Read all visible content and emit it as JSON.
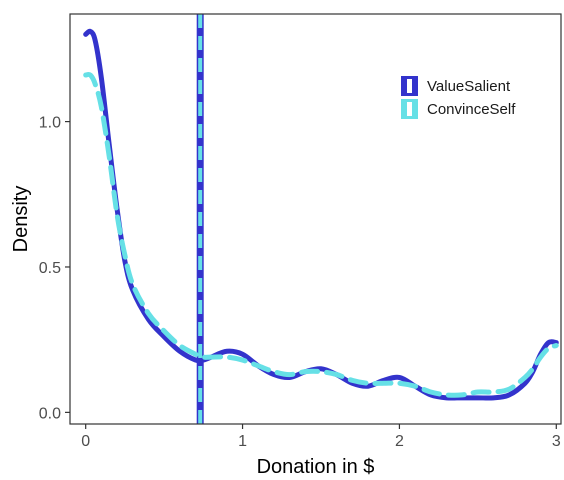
{
  "chart_data": {
    "type": "line",
    "title": "",
    "xlabel": "Donation in $",
    "ylabel": "Density",
    "xlim": [
      -0.1,
      3.03
    ],
    "ylim": [
      -0.04,
      1.37
    ],
    "x_ticks": [
      0,
      1,
      2,
      3
    ],
    "x_tick_labels": [
      "0",
      "1",
      "2",
      "3"
    ],
    "y_ticks": [
      0.0,
      0.5,
      1.0
    ],
    "y_tick_labels": [
      "0.0",
      "0.5",
      "1.0"
    ],
    "grid": false,
    "legend_position": "top-right",
    "series": [
      {
        "name": "ValueSalient",
        "color": "#3333cc",
        "line_style": "solid",
        "x": [
          0.0,
          0.03,
          0.06,
          0.1,
          0.15,
          0.2,
          0.25,
          0.3,
          0.4,
          0.5,
          0.6,
          0.7,
          0.75,
          0.8,
          0.9,
          1.0,
          1.1,
          1.2,
          1.3,
          1.4,
          1.5,
          1.6,
          1.7,
          1.8,
          1.9,
          2.0,
          2.1,
          2.2,
          2.3,
          2.4,
          2.5,
          2.6,
          2.7,
          2.8,
          2.85,
          2.9,
          2.95,
          3.0
        ],
        "y": [
          1.3,
          1.31,
          1.28,
          1.15,
          0.92,
          0.7,
          0.52,
          0.42,
          0.32,
          0.26,
          0.21,
          0.18,
          0.18,
          0.19,
          0.21,
          0.2,
          0.16,
          0.13,
          0.12,
          0.14,
          0.15,
          0.13,
          0.1,
          0.09,
          0.11,
          0.12,
          0.09,
          0.06,
          0.05,
          0.05,
          0.05,
          0.05,
          0.06,
          0.1,
          0.14,
          0.2,
          0.24,
          0.24
        ]
      },
      {
        "name": "ConvinceSelf",
        "color": "#66e0e6",
        "line_style": "dashed",
        "x": [
          0.0,
          0.03,
          0.06,
          0.1,
          0.15,
          0.2,
          0.25,
          0.3,
          0.4,
          0.5,
          0.6,
          0.7,
          0.75,
          0.8,
          0.9,
          1.0,
          1.1,
          1.2,
          1.3,
          1.4,
          1.5,
          1.6,
          1.7,
          1.8,
          1.9,
          2.0,
          2.1,
          2.2,
          2.3,
          2.4,
          2.5,
          2.6,
          2.7,
          2.8,
          2.85,
          2.9,
          2.95,
          3.0
        ],
        "y": [
          1.16,
          1.16,
          1.13,
          1.05,
          0.88,
          0.68,
          0.54,
          0.44,
          0.34,
          0.28,
          0.23,
          0.2,
          0.19,
          0.19,
          0.19,
          0.18,
          0.16,
          0.14,
          0.13,
          0.14,
          0.14,
          0.13,
          0.11,
          0.1,
          0.1,
          0.1,
          0.09,
          0.07,
          0.06,
          0.06,
          0.07,
          0.07,
          0.08,
          0.12,
          0.15,
          0.19,
          0.22,
          0.23
        ]
      }
    ],
    "vlines": [
      {
        "series": "ValueSalient",
        "x": 0.73,
        "color": "#3333cc",
        "line_style": "solid"
      },
      {
        "series": "ConvinceSelf",
        "x": 0.73,
        "color": "#66e0e6",
        "line_style": "dashed"
      }
    ]
  }
}
